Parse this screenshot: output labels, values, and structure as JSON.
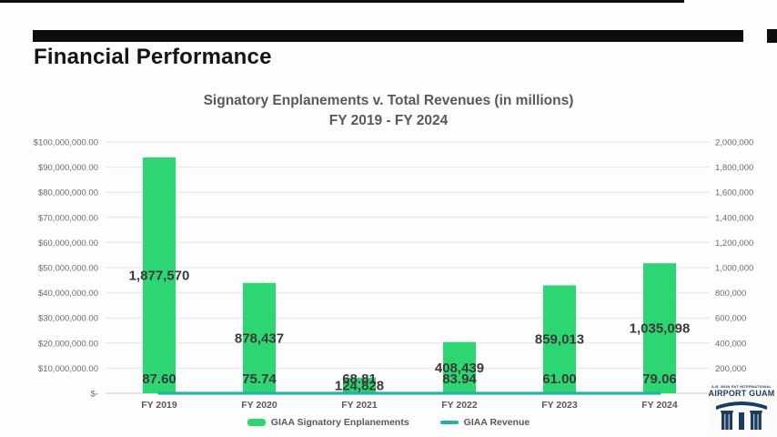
{
  "slide": {
    "heading": "Financial Performance"
  },
  "logo": {
    "line1": "A.B. WON PAT INTERNATIONAL",
    "line2": "AIRPORT GUAM"
  },
  "chart_data": {
    "type": "combo-bar-line",
    "title": "Signatory Enplanements v. Total Revenues (in millions)",
    "subtitle": "FY 2019 - FY 2024",
    "categories": [
      "FY 2019",
      "FY 2020",
      "FY 2021",
      "FY 2022",
      "FY 2023",
      "FY 2024"
    ],
    "series": [
      {
        "name": "GIAA Signatory Enplanements",
        "type": "bar",
        "axis": "right",
        "color": "#2ed573",
        "values": [
          1877570,
          878437,
          124828,
          408439,
          859013,
          1035098
        ],
        "labels": [
          "1,877,570",
          "878,437",
          "124,828",
          "408,439",
          "859,013",
          "1,035,098"
        ]
      },
      {
        "name": "GIAA Revenue",
        "type": "line",
        "axis": "left",
        "color": "#27b1a1",
        "values": [
          87.6,
          75.74,
          68.81,
          83.94,
          61.0,
          79.06
        ],
        "labels": [
          "87.60",
          "75.74",
          "68.81",
          "83.94",
          "61.00",
          "79.06"
        ]
      }
    ],
    "left_axis": {
      "min": 0,
      "max": 100000000,
      "ticks": [
        "$100,000,000.00",
        "$90,000,000.00",
        "$80,000,000.00",
        "$70,000,000.00",
        "$60,000,000.00",
        "$50,000,000.00",
        "$40,000,000.00",
        "$30,000,000.00",
        "$20,000,000.00",
        "$10,000,000.00",
        "$-"
      ]
    },
    "right_axis": {
      "min": 0,
      "max": 2000000,
      "ticks": [
        "2,000,000",
        "1,800,000",
        "1,600,000",
        "1,400,000",
        "1,200,000",
        "1,000,000",
        "800,000",
        "600,000",
        "400,000",
        "200,000"
      ]
    },
    "grid": true,
    "legend_position": "bottom"
  }
}
